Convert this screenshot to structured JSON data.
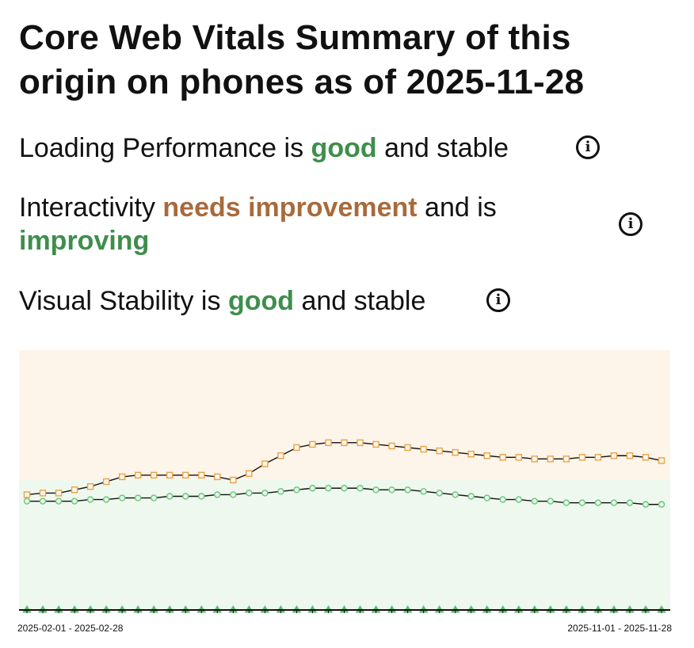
{
  "title": "Core Web Vitals Summary of this origin on phones as of 2025-11-28",
  "metrics": [
    {
      "pre": "Loading Performance is ",
      "status": "good",
      "mid": " and stable",
      "trend": "",
      "status_class": "good",
      "trend_class": "",
      "info_icon": "info-icon"
    },
    {
      "pre": "Interactivity ",
      "status": "needs improvement",
      "mid": " and is ",
      "trend": "improving",
      "status_class": "ni",
      "trend_class": "good",
      "info_icon": "info-icon"
    },
    {
      "pre": "Visual Stability is ",
      "status": "good",
      "mid": " and stable",
      "trend": "",
      "status_class": "good",
      "trend_class": "",
      "info_icon": "info-icon"
    }
  ],
  "chart_data": {
    "type": "line",
    "title": "",
    "xlabel": "",
    "ylabel": "",
    "ylim": [
      0,
      1.6
    ],
    "threshold_good": 0.8,
    "x_tick_labels": [
      "2025-02-01 - 2025-02-28",
      "2025-11-01 - 2025-11-28"
    ],
    "x_count": 41,
    "bands": [
      {
        "name": "needs improvement",
        "from": 0.8,
        "to": 1.6,
        "color": "#fdf4ea"
      },
      {
        "name": "good",
        "from": 0.0,
        "to": 0.8,
        "color": "#eef8ef"
      }
    ],
    "series": [
      {
        "name": "Interactivity",
        "marker": "square",
        "values": [
          0.71,
          0.72,
          0.72,
          0.74,
          0.76,
          0.79,
          0.82,
          0.83,
          0.83,
          0.83,
          0.83,
          0.83,
          0.82,
          0.8,
          0.84,
          0.9,
          0.95,
          1.0,
          1.02,
          1.03,
          1.03,
          1.03,
          1.02,
          1.01,
          1.0,
          0.99,
          0.98,
          0.97,
          0.96,
          0.95,
          0.94,
          0.94,
          0.93,
          0.93,
          0.93,
          0.94,
          0.94,
          0.95,
          0.95,
          0.94,
          0.92
        ],
        "colors": {
          "stroke": "#e6a44a",
          "fill": "#fff6e8"
        }
      },
      {
        "name": "Loading Performance",
        "marker": "circle",
        "values": [
          0.67,
          0.67,
          0.67,
          0.67,
          0.68,
          0.68,
          0.69,
          0.69,
          0.69,
          0.7,
          0.7,
          0.7,
          0.71,
          0.71,
          0.72,
          0.72,
          0.73,
          0.74,
          0.75,
          0.75,
          0.75,
          0.75,
          0.74,
          0.74,
          0.74,
          0.73,
          0.72,
          0.71,
          0.7,
          0.69,
          0.68,
          0.68,
          0.67,
          0.67,
          0.66,
          0.66,
          0.66,
          0.66,
          0.66,
          0.65,
          0.65
        ],
        "colors": {
          "stroke": "#6cc47a",
          "fill": "#e6f6e8"
        }
      },
      {
        "name": "Visual Stability",
        "marker": "triangle",
        "values": [
          0.0,
          0.0,
          0.0,
          0.0,
          0.0,
          0.0,
          0.0,
          0.0,
          0.0,
          0.0,
          0.0,
          0.0,
          0.0,
          0.0,
          0.0,
          0.0,
          0.0,
          0.0,
          0.0,
          0.0,
          0.0,
          0.0,
          0.0,
          0.0,
          0.0,
          0.0,
          0.0,
          0.0,
          0.0,
          0.0,
          0.0,
          0.0,
          0.0,
          0.0,
          0.0,
          0.0,
          0.0,
          0.0,
          0.0,
          0.0,
          0.0
        ],
        "colors": {
          "stroke": "#5bbf6a",
          "fill": "#5bbf6a"
        }
      }
    ],
    "line_color": "#111111",
    "axis_color": "#111111"
  }
}
